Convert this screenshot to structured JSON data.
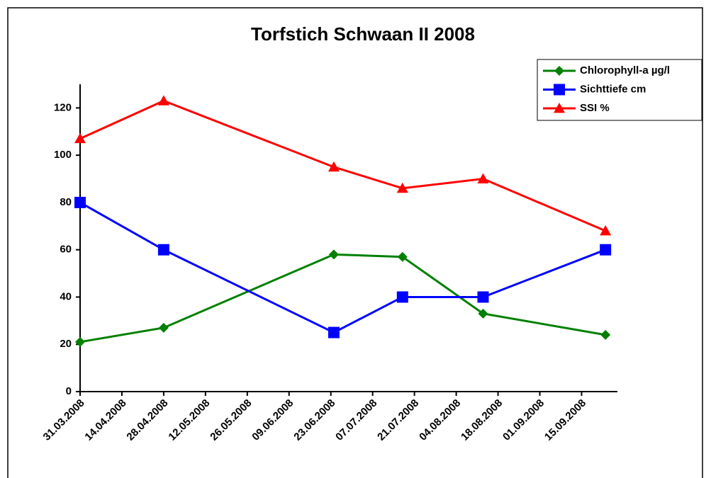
{
  "chart_data": {
    "type": "line",
    "title": "Torfstich Schwaan II  2008",
    "x": [
      "2008-03-31",
      "2008-04-28",
      "2008-06-24",
      "2008-07-17",
      "2008-08-13",
      "2008-09-23"
    ],
    "series": [
      {
        "name": "Chlorophyll-a µg/l",
        "color": "#008000",
        "marker": "diamond",
        "values": [
          21,
          27,
          58,
          57,
          33,
          24
        ]
      },
      {
        "name": "Sichttiefe cm",
        "color": "#0000ff",
        "marker": "square",
        "values": [
          80,
          60,
          25,
          40,
          40,
          60
        ]
      },
      {
        "name": "SSI %",
        "color": "#ff0000",
        "marker": "triangle",
        "values": [
          107,
          123,
          95,
          86,
          90,
          68
        ]
      }
    ],
    "xlim": [
      "2008-03-31",
      "2008-09-27"
    ],
    "xticks": [
      {
        "value": "2008-03-31",
        "label": "31.03.2008"
      },
      {
        "value": "2008-04-14",
        "label": "14.04.2008"
      },
      {
        "value": "2008-04-28",
        "label": "28.04.2008"
      },
      {
        "value": "2008-05-12",
        "label": "12.05.2008"
      },
      {
        "value": "2008-05-26",
        "label": "26.05.2008"
      },
      {
        "value": "2008-06-09",
        "label": "09.06.2008"
      },
      {
        "value": "2008-06-23",
        "label": "23.06.2008"
      },
      {
        "value": "2008-07-07",
        "label": "07.07.2008"
      },
      {
        "value": "2008-07-21",
        "label": "21.07.2008"
      },
      {
        "value": "2008-08-04",
        "label": "04.08.2008"
      },
      {
        "value": "2008-08-18",
        "label": "18.08.2008"
      },
      {
        "value": "2008-09-01",
        "label": "01.09.2008"
      },
      {
        "value": "2008-09-15",
        "label": "15.09.2008"
      }
    ],
    "ylim": [
      0,
      130
    ],
    "yticks": [
      0,
      20,
      40,
      60,
      80,
      100,
      120
    ],
    "grid": false,
    "legend": "top-right"
  }
}
